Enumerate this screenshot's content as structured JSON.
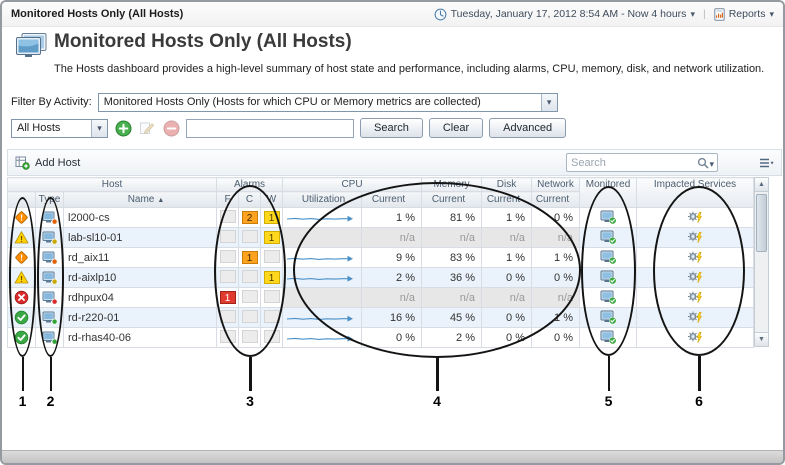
{
  "breadcrumb": {
    "title": "Monitored Hosts Only (All Hosts)"
  },
  "topbar": {
    "time_range": "Tuesday, January 17, 2012 8:54 AM - Now 4 hours",
    "reports": "Reports"
  },
  "header": {
    "title": "Monitored Hosts Only (All Hosts)",
    "description": "The Hosts dashboard provides a high-level summary of host state and performance, including alarms, CPU, memory, disk, and network utilization."
  },
  "filters": {
    "activity_label": "Filter By Activity:",
    "activity_value": "Monitored Hosts Only (Hosts for which CPU or Memory metrics are collected)",
    "scope_value": "All Hosts",
    "search_value": "",
    "search_button": "Search",
    "clear_button": "Clear",
    "advanced_button": "Advanced"
  },
  "toolbar": {
    "add_host": "Add Host",
    "search_placeholder": "Search"
  },
  "table": {
    "groups": {
      "host": "Host",
      "alarms": "Alarms",
      "cpu": "CPU",
      "memory": "Memory",
      "disk": "Disk",
      "network": "Network",
      "monitored": "Monitored",
      "impacted": "Impacted Services"
    },
    "columns": {
      "type": "Type",
      "name": "Name",
      "f": "F",
      "c": "C",
      "w": "W",
      "utilization": "Utilization",
      "current": "Current"
    },
    "rows": [
      {
        "status": "critical",
        "name": "l2000-cs",
        "f": "",
        "c": "2",
        "w": "1",
        "spark": true,
        "na": false,
        "cpu": "1 %",
        "mem": "81 %",
        "disk": "1 %",
        "net": "0 %"
      },
      {
        "status": "warning",
        "name": "lab-sl10-01",
        "f": "",
        "c": "",
        "w": "1",
        "spark": false,
        "na": true,
        "cpu": "n/a",
        "mem": "n/a",
        "disk": "n/a",
        "net": "n/a"
      },
      {
        "status": "critical",
        "name": "rd_aix11",
        "f": "",
        "c": "1",
        "w": "",
        "spark": true,
        "na": false,
        "cpu": "9 %",
        "mem": "83 %",
        "disk": "1 %",
        "net": "1 %"
      },
      {
        "status": "warning",
        "name": "rd-aixlp10",
        "f": "",
        "c": "",
        "w": "1",
        "spark": true,
        "na": false,
        "cpu": "2 %",
        "mem": "36 %",
        "disk": "0 %",
        "net": "0 %"
      },
      {
        "status": "fatal",
        "name": "rdhpux04",
        "f": "1",
        "c": "",
        "w": "",
        "spark": false,
        "na": true,
        "cpu": "n/a",
        "mem": "n/a",
        "disk": "n/a",
        "net": "n/a"
      },
      {
        "status": "normal",
        "name": "rd-r220-01",
        "f": "",
        "c": "",
        "w": "",
        "spark": true,
        "na": false,
        "cpu": "16 %",
        "mem": "45 %",
        "disk": "0 %",
        "net": "1 %"
      },
      {
        "status": "normal",
        "name": "rd-rhas40-06",
        "f": "",
        "c": "",
        "w": "",
        "spark": true,
        "na": false,
        "cpu": "0 %",
        "mem": "2 %",
        "disk": "0 %",
        "net": "0 %"
      }
    ]
  },
  "callouts": {
    "labels": [
      "1",
      "2",
      "3",
      "4",
      "5",
      "6"
    ]
  },
  "colors": {
    "fatal": "#d92b2b",
    "critical": "#ff8c00",
    "warning": "#ffd200",
    "normal": "#3aa844",
    "sparkline": "#4a90c8",
    "alarm_fatal": "#e03a2f",
    "alarm_critical": "#ffa21f",
    "alarm_warning": "#ffd81e",
    "row_alt": "#eaf3fb"
  }
}
